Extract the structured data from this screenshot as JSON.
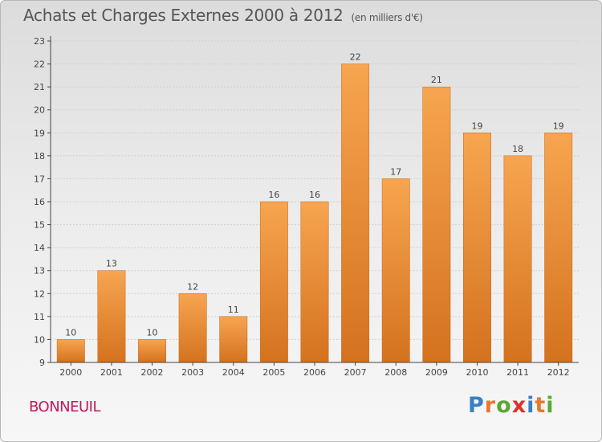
{
  "title": "Achats et Charges Externes 2000 à 2012",
  "unit": "(en milliers d'€)",
  "location": "BONNEUIL",
  "brand": {
    "letters": [
      "P",
      "r",
      "o",
      "x",
      "i",
      "t",
      "i"
    ],
    "colors": [
      "#3a7fc1",
      "#e8782b",
      "#5aa832",
      "#d9342b",
      "#3a7fc1",
      "#e8782b",
      "#5aa832"
    ]
  },
  "colors": {
    "bar_top": "#f7a550",
    "bar_bottom": "#d4721e",
    "axis": "#444444",
    "grid": "#cfcfcf"
  },
  "chart_data": {
    "type": "bar",
    "categories": [
      "2000",
      "2001",
      "2002",
      "2003",
      "2004",
      "2005",
      "2006",
      "2007",
      "2008",
      "2009",
      "2010",
      "2011",
      "2012"
    ],
    "values": [
      10,
      13,
      10,
      12,
      11,
      16,
      16,
      22,
      17,
      21,
      19,
      18,
      19
    ],
    "ylim": [
      9,
      23
    ],
    "yticks": [
      9,
      10,
      11,
      12,
      13,
      14,
      15,
      16,
      17,
      18,
      19,
      20,
      21,
      22,
      23
    ],
    "grid": true,
    "data_labels": true
  }
}
